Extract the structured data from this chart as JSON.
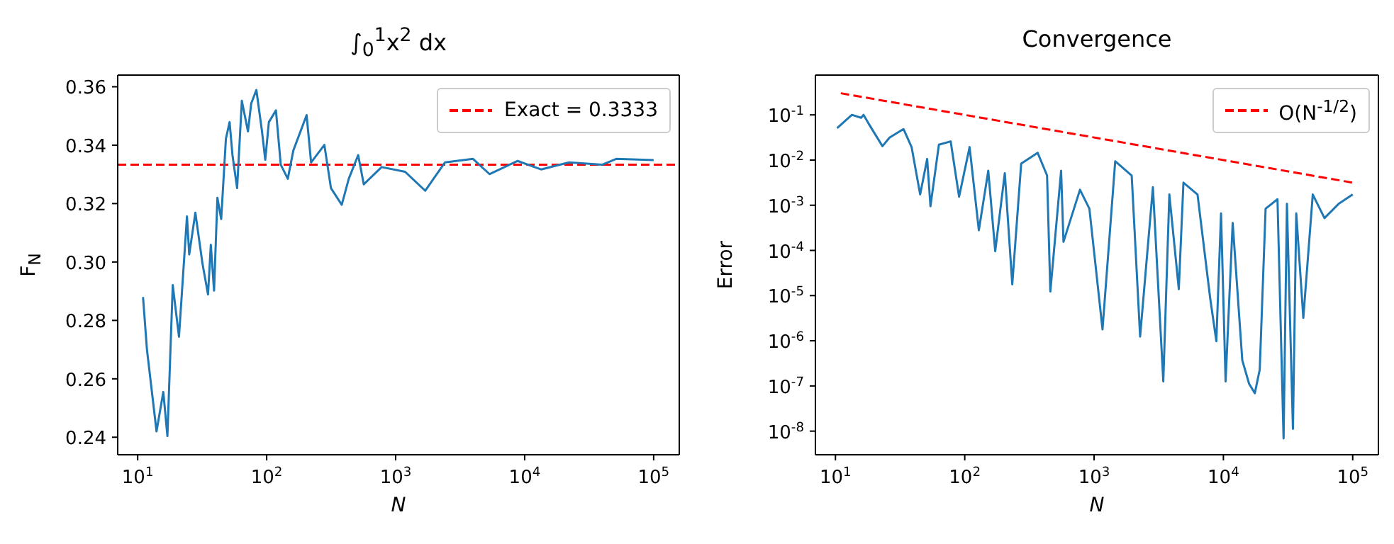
{
  "chart_data": [
    {
      "type": "line",
      "title": "∫$_{0}$$^{1}$x$^{2}$ dx",
      "xlabel": "N",
      "ylabel": "F$_{N}$",
      "log": "x",
      "xlim": [
        7,
        158000
      ],
      "xticks": [
        {
          "value": 10,
          "label": "10$^{1}$"
        },
        {
          "value": 100,
          "label": "10$^{2}$"
        },
        {
          "value": 1000,
          "label": "10$^{3}$"
        },
        {
          "value": 10000,
          "label": "10$^{4}$"
        },
        {
          "value": 100000,
          "label": "10$^{5}$"
        }
      ],
      "ylim": [
        0.234,
        0.364
      ],
      "yticks": [
        0.24,
        0.26,
        0.28,
        {
          "value": 0.3,
          "label": "0.30"
        },
        0.32,
        0.34,
        0.36
      ],
      "legend": "top right",
      "marker": "none",
      "line_style": "solid",
      "series": [
        {
          "color": "#1f77b4",
          "x": [
            11,
            11.8,
            14,
            15.8,
            17,
            18.7,
            20.9,
            24.1,
            25.1,
            28,
            31.8,
            35.1,
            36.9,
            39.1,
            41.5,
            44.4,
            48.3,
            51.6,
            54.3,
            59,
            64.2,
            71.6,
            75.9,
            83.2,
            92,
            97.5,
            104,
            118,
            128.6,
            145.8,
            161,
            204,
            221,
            280,
            315,
            382,
            433,
            512,
            566,
            778,
            1183,
            1694,
            2409,
            3981,
            5337,
            8820,
            13400,
            22100,
            39800,
            51200,
            100000
          ],
          "values": [
            0.288,
            0.27,
            0.242,
            0.2555,
            0.2404,
            0.2921,
            0.2744,
            0.3156,
            0.3026,
            0.3169,
            0.2994,
            0.2889,
            0.3059,
            0.2902,
            0.322,
            0.3147,
            0.3422,
            0.3479,
            0.3366,
            0.3253,
            0.3552,
            0.3447,
            0.3543,
            0.3589,
            0.3447,
            0.335,
            0.3479,
            0.3519,
            0.3333,
            0.3285,
            0.3382,
            0.3503,
            0.3341,
            0.3401,
            0.3253,
            0.3196,
            0.3285,
            0.3366,
            0.3266,
            0.3325,
            0.3309,
            0.3244,
            0.3341,
            0.3353,
            0.3301,
            0.3346,
            0.3317,
            0.3341,
            0.3333,
            0.3353,
            0.3349
          ]
        }
      ],
      "ref_lines": [
        {
          "axis": "y",
          "value": 0.3333,
          "label": "Exact = 0.3333",
          "color": "#ff0000",
          "line_style": "dashed"
        }
      ]
    },
    {
      "type": "line",
      "title": "Convergence",
      "xlabel": "N",
      "ylabel": "Error",
      "log": "xy",
      "xlim": [
        7,
        158000
      ],
      "xticks": [
        {
          "value": 10,
          "label": "10$^{1}$"
        },
        {
          "value": 100,
          "label": "10$^{2}$"
        },
        {
          "value": 1000,
          "label": "10$^{3}$"
        },
        {
          "value": 10000,
          "label": "10$^{4}$"
        },
        {
          "value": 100000,
          "label": "10$^{5}$"
        }
      ],
      "ylim": [
        3e-09,
        0.76
      ],
      "yticks": [
        {
          "value": 1e-08,
          "label": "10$^{-8}$"
        },
        {
          "value": 1e-07,
          "label": "10$^{-7}$"
        },
        {
          "value": 1e-06,
          "label": "10$^{-6}$"
        },
        {
          "value": 1e-05,
          "label": "10$^{-5}$"
        },
        {
          "value": 0.0001,
          "label": "10$^{-4}$"
        },
        {
          "value": 0.001,
          "label": "10$^{-3}$"
        },
        {
          "value": 0.01,
          "label": "10$^{-2}$"
        },
        {
          "value": 0.1,
          "label": "10$^{-1}$"
        }
      ],
      "legend": "top right",
      "marker": "none",
      "line_style": "solid",
      "series": [
        {
          "color": "#1f77b4",
          "x": [
            10.3,
            13.4,
            15.8,
            16.5,
            18,
            23.1,
            26.2,
            33.6,
            38.8,
            45.2,
            51.2,
            54.3,
            63.1,
            77.8,
            90.4,
            109,
            128.5,
            152,
            172,
            204,
            233,
            273,
            366,
            433,
            459,
            556,
            580,
            778,
            920,
            1162,
            1457,
            1954,
            2270,
            2850,
            3430,
            3820,
            4520,
            4910,
            6310,
            7910,
            8820,
            9590,
            10400,
            11800,
            14000,
            15800,
            17500,
            19100,
            21200,
            26200,
            29200,
            31000,
            34500,
            36600,
            41500,
            49100,
            60500,
            77800,
            100000
          ],
          "values": [
            0.051,
            0.1,
            0.0865,
            0.1,
            0.065,
            0.0203,
            0.0314,
            0.0485,
            0.0194,
            0.00173,
            0.0106,
            0.00095,
            0.0219,
            0.0259,
            0.00154,
            0.0194,
            0.00028,
            0.0058,
            9.6e-05,
            0.00514,
            1.77e-05,
            0.0083,
            0.0145,
            0.00455,
            1.23e-05,
            0.0058,
            0.000155,
            0.0022,
            0.00084,
            1.78e-06,
            0.0094,
            0.00455,
            1.24e-06,
            0.0025,
            1.26e-07,
            0.00173,
            1.39e-05,
            0.00316,
            0.00173,
            8.6e-06,
            9.8e-07,
            0.00066,
            1.26e-07,
            0.000407,
            3.7e-07,
            1.12e-07,
            6.9e-08,
            2.3e-07,
            0.00084,
            0.00136,
            6.9e-09,
            0.00107,
            1.12e-08,
            0.00066,
            3.2e-06,
            0.00173,
            0.00052,
            0.00107,
            0.00173
          ]
        },
        {
          "name": "O(N$^{-1/2}$)",
          "color": "#ff0000",
          "line_style": "dashed",
          "x": [
            11,
            100000
          ],
          "values": [
            0.3015,
            0.00316
          ]
        }
      ]
    }
  ]
}
